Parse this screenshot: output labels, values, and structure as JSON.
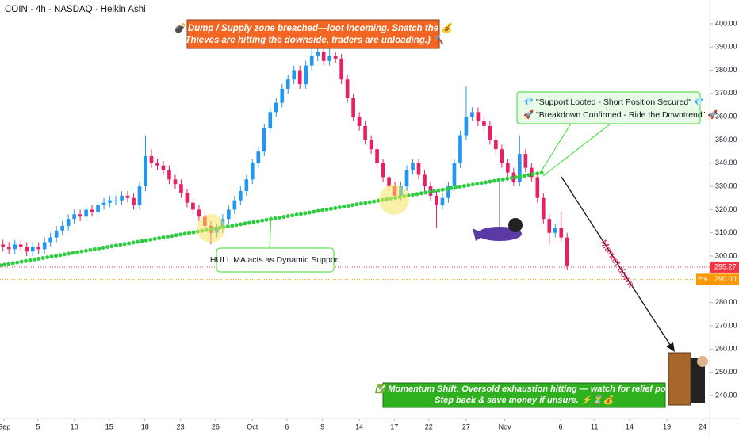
{
  "chart_data": {
    "type": "candlestick",
    "header": "COIN · 4h · NASDAQ · Heikin Ashi",
    "up_color": "#2196f3",
    "down_color": "#e91e63",
    "open": [
      305,
      304,
      303,
      305,
      304,
      302,
      304,
      303,
      306,
      308,
      311,
      313,
      316,
      318,
      317,
      320,
      319,
      322,
      323,
      324,
      324,
      326,
      325,
      322,
      330,
      343,
      340,
      339,
      337,
      333,
      331,
      327,
      323,
      320,
      317,
      313,
      310,
      312,
      316,
      320,
      324,
      328,
      333,
      340,
      345,
      355,
      362,
      366,
      372,
      376,
      380,
      374,
      382,
      386,
      388,
      384,
      386,
      385,
      376,
      368,
      360,
      356,
      350,
      346,
      340,
      334,
      330,
      326,
      330,
      337,
      340,
      335,
      330,
      326,
      322,
      325,
      330,
      340,
      352,
      360,
      362,
      358,
      356,
      350,
      346,
      340,
      336,
      332,
      344,
      338,
      334,
      325,
      316,
      310,
      312,
      308
    ],
    "high": [
      307,
      306,
      307,
      307,
      306,
      306,
      306,
      308,
      310,
      313,
      315,
      318,
      320,
      320,
      322,
      322,
      324,
      325,
      326,
      326,
      328,
      328,
      327,
      332,
      352,
      346,
      342,
      341,
      339,
      335,
      333,
      329,
      325,
      322,
      319,
      315,
      314,
      318,
      322,
      326,
      330,
      335,
      342,
      347,
      357,
      364,
      368,
      374,
      378,
      382,
      382,
      384,
      390,
      401,
      390,
      395,
      388,
      387,
      378,
      370,
      362,
      358,
      352,
      348,
      342,
      336,
      332,
      332,
      339,
      342,
      342,
      337,
      332,
      328,
      327,
      332,
      342,
      354,
      373,
      364,
      364,
      360,
      358,
      352,
      348,
      342,
      338,
      352,
      346,
      340,
      336,
      327,
      318,
      314,
      319,
      310
    ],
    "low": [
      302,
      301,
      301,
      302,
      300,
      300,
      301,
      301,
      304,
      306,
      309,
      311,
      314,
      315,
      315,
      317,
      317,
      320,
      321,
      322,
      322,
      323,
      320,
      320,
      328,
      338,
      337,
      335,
      331,
      329,
      325,
      321,
      318,
      315,
      311,
      305,
      308,
      310,
      314,
      318,
      322,
      326,
      331,
      338,
      343,
      353,
      360,
      364,
      370,
      374,
      372,
      372,
      380,
      384,
      382,
      382,
      383,
      374,
      366,
      358,
      354,
      348,
      344,
      338,
      332,
      328,
      324,
      324,
      328,
      335,
      333,
      328,
      324,
      312,
      320,
      323,
      328,
      338,
      350,
      358,
      356,
      354,
      348,
      344,
      338,
      334,
      330,
      330,
      336,
      332,
      323,
      314,
      305,
      308,
      306,
      294
    ],
    "close": [
      304,
      303,
      305,
      304,
      302,
      304,
      303,
      306,
      308,
      311,
      313,
      316,
      318,
      317,
      320,
      319,
      322,
      323,
      324,
      324,
      326,
      325,
      322,
      330,
      343,
      340,
      339,
      337,
      333,
      331,
      327,
      323,
      320,
      317,
      313,
      310,
      312,
      316,
      320,
      324,
      328,
      333,
      340,
      345,
      355,
      362,
      366,
      372,
      376,
      380,
      374,
      382,
      386,
      388,
      384,
      386,
      385,
      376,
      368,
      360,
      356,
      350,
      346,
      340,
      334,
      330,
      326,
      330,
      337,
      340,
      335,
      330,
      326,
      322,
      325,
      330,
      340,
      352,
      360,
      362,
      358,
      356,
      350,
      346,
      340,
      336,
      332,
      344,
      338,
      334,
      325,
      316,
      310,
      312,
      308,
      296
    ],
    "series": [
      {
        "x": [
          -0.5,
          91
        ],
        "values": [
          296,
          336
        ],
        "color": "#2ecc40"
      }
    ],
    "xlim": [
      -0.5,
      119
    ],
    "xticks": [
      {
        "value": 0.2,
        "label": "Sep"
      },
      {
        "value": 5.9,
        "label": "5"
      },
      {
        "value": 12,
        "label": "10"
      },
      {
        "value": 17.9,
        "label": "15"
      },
      {
        "value": 23.9,
        "label": "18"
      },
      {
        "value": 29.9,
        "label": "23"
      },
      {
        "value": 35.8,
        "label": "26"
      },
      {
        "value": 42,
        "label": "Oct"
      },
      {
        "value": 47.8,
        "label": "6"
      },
      {
        "value": 53.8,
        "label": "9"
      },
      {
        "value": 60,
        "label": "14"
      },
      {
        "value": 65.9,
        "label": "17"
      },
      {
        "value": 71.7,
        "label": "22"
      },
      {
        "value": 78,
        "label": "27"
      },
      {
        "value": 84.5,
        "label": "Nov"
      },
      {
        "value": 93.9,
        "label": "6"
      },
      {
        "value": 99.6,
        "label": "11"
      },
      {
        "value": 105.5,
        "label": "14"
      },
      {
        "value": 111.8,
        "label": "19"
      },
      {
        "value": 117.8,
        "label": "24"
      }
    ],
    "ylim": [
      230.1,
      410.2
    ],
    "yticks": [
      {
        "value": 400,
        "label": "400.00"
      },
      {
        "value": 390,
        "label": "390.00"
      },
      {
        "value": 380,
        "label": "380.00"
      },
      {
        "value": 370,
        "label": "370.00"
      },
      {
        "value": 360,
        "label": "360.00"
      },
      {
        "value": 350,
        "label": "350.00"
      },
      {
        "value": 340,
        "label": "340.00"
      },
      {
        "value": 330,
        "label": "330.00"
      },
      {
        "value": 320,
        "label": "320.00"
      },
      {
        "value": 310,
        "label": "310.00"
      },
      {
        "value": 300,
        "label": "300.00"
      },
      {
        "value": 290,
        "label": "290.00"
      },
      {
        "value": 280,
        "label": "280.00"
      },
      {
        "value": 270,
        "label": "270.00"
      },
      {
        "value": 260,
        "label": "260.00"
      },
      {
        "value": 250,
        "label": "250.00"
      },
      {
        "value": 240,
        "label": "240.00"
      }
    ],
    "grid": false,
    "price_tags": [
      {
        "value": 295.27,
        "label": "295.27",
        "color": "#f23645"
      },
      {
        "value": 290,
        "label": "290.00",
        "prefix": "Pre",
        "color": "#ff9800"
      }
    ],
    "annotations": [
      "💣 Dump / Supply zone breached—loot incoming. Snatch the 💰",
      "(Thieves are hitting the downside, traders are unloading.) 🔨",
      "💎 \"Support Looted - Short Position Secured\" 💎",
      "🚀 \"Breakdown Confirmed - Ride the Downtrend\" 🚀",
      "HULL MA acts as Dynamic Support",
      "Market down",
      "✅ Momentum Shift: Oversold exhaustion hitting — watch for relief pop.",
      "Step back & save money if unsure. ⚡⏳💰"
    ]
  }
}
